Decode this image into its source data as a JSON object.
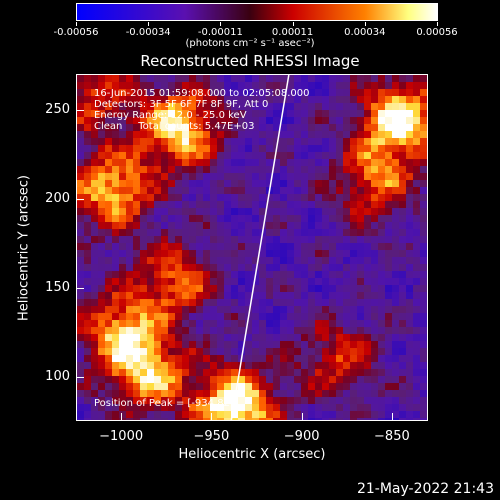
{
  "colorbar": {
    "tick_labels": [
      "-0.00056",
      "-0.00034",
      "-0.00011",
      "0.00011",
      "0.00034",
      "0.00056"
    ],
    "units": "(photons cm⁻² s⁻¹ asec⁻²)",
    "colors": [
      "#0000ff",
      "#6a00c8",
      "#5a0030",
      "#cc0000",
      "#ff8000",
      "#ffff80",
      "#ffffff"
    ]
  },
  "chart_data": {
    "type": "heatmap",
    "title": "Reconstructed RHESSI Image",
    "xlabel": "Heliocentric X (arcsec)",
    "ylabel": "Heliocentric Y (arcsec)",
    "xlim": [
      -1025,
      -830
    ],
    "ylim": [
      75,
      270
    ],
    "x_ticks": [
      -1000,
      -950,
      -900,
      -850
    ],
    "y_ticks": [
      100,
      150,
      200,
      250
    ],
    "annotations": [
      "16-Jun-2015 01:59:08.000 to 02:05:08.000",
      "Detectors: 3F 5F 6F 7F 8F 9F, Att 0",
      "Energy Range: 12.0 - 25.0 keV",
      "Clean     Total counts: 5.47E+03"
    ],
    "peak_label": "Position of Peak = [-934,82]",
    "limb_line": [
      [
        -939,
        75
      ],
      [
        -907,
        270
      ]
    ],
    "bright_regions": [
      {
        "x": -937,
        "y": 82,
        "intensity": 1.0
      },
      {
        "x": -968,
        "y": 240,
        "intensity": 0.85
      },
      {
        "x": -845,
        "y": 245,
        "intensity": 0.9
      },
      {
        "x": -1005,
        "y": 205,
        "intensity": 0.75
      },
      {
        "x": -1000,
        "y": 125,
        "intensity": 0.7
      },
      {
        "x": -985,
        "y": 100,
        "intensity": 0.65
      },
      {
        "x": -970,
        "y": 155,
        "intensity": 0.55
      },
      {
        "x": -860,
        "y": 210,
        "intensity": 0.55
      },
      {
        "x": -880,
        "y": 110,
        "intensity": 0.45
      },
      {
        "x": -1015,
        "y": 260,
        "intensity": 0.5
      }
    ]
  },
  "datestamp": "21-May-2022 21:43"
}
